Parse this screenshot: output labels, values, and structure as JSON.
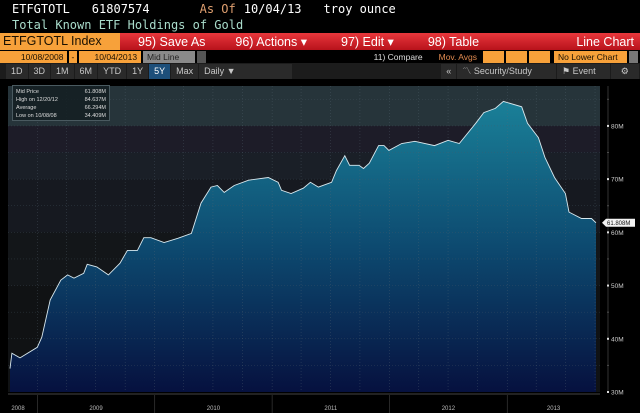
{
  "header": {
    "ticker": "ETFGTOTL",
    "value": "61807574",
    "as_of_label": "As Of",
    "as_of_date": "10/04/13",
    "unit": "troy ounce",
    "description": "Total Known ETF Holdings of Gold"
  },
  "toolbar": {
    "security": "ETFGTOTL Index",
    "save_as": "95) Save As",
    "actions": "96) Actions ▾",
    "edit": "97) Edit ▾",
    "table": "98) Table",
    "chart_type": "Line Chart"
  },
  "controls": {
    "start_date": "10/08/2008",
    "dash": "-",
    "end_date": "10/04/2013",
    "line_mode": "Mid Line",
    "compare": "11) Compare",
    "mov_avgs": "Mov. Avgs",
    "lower_chart": "No Lower Chart"
  },
  "periods": [
    "1D",
    "3D",
    "1M",
    "6M",
    "YTD",
    "1Y",
    "5Y",
    "Max"
  ],
  "selected_period": "5Y",
  "frequency": "Daily ▼",
  "collapse": "«",
  "security_study": "Security/Study",
  "event": "Event",
  "icons": {
    "settings": "gear-icon",
    "study": "line-chart-icon",
    "event": "flag-icon"
  },
  "colors": {
    "accent_orange": "#f7a13a",
    "toolbar_red": "#d0202a",
    "fill_top": "#1a8098",
    "fill_bottom": "#06113f",
    "line": "#d8e8ee"
  },
  "legend": [
    {
      "label": "Mid Price",
      "value": "61.808M"
    },
    {
      "label": "High on 12/20/12",
      "value": "84.637M"
    },
    {
      "label": "Average",
      "value": "66.294M"
    },
    {
      "label": "Low on 10/08/08",
      "value": "34.409M"
    }
  ],
  "chart_data": {
    "type": "area",
    "title": "",
    "xlabel": "",
    "ylabel": "",
    "ylim": [
      30,
      87.5
    ],
    "xlim": [
      "2008-10-08",
      "2013-10-04"
    ],
    "yticks": [
      "30M",
      "40M",
      "50M",
      "60M",
      "70M",
      "80M"
    ],
    "ytick_values": [
      30,
      40,
      50,
      60,
      70,
      80
    ],
    "xticks": [
      "2008",
      "2009",
      "2010",
      "2011",
      "2012",
      "2013"
    ],
    "last_value_label": "61.808M",
    "grid": true,
    "series": [
      {
        "x": [
          "2008-10-08",
          "2008-10-14",
          "2008-11-08",
          "2009-01-01",
          "2009-01-15",
          "2009-02-10",
          "2009-03-15",
          "2009-04-05",
          "2009-04-25",
          "2009-05-25",
          "2009-06-05",
          "2009-07-05",
          "2009-08-10",
          "2009-09-15",
          "2009-10-08",
          "2009-11-08",
          "2009-11-28",
          "2009-12-20",
          "2010-01-30",
          "2010-03-15",
          "2010-04-25",
          "2010-05-25",
          "2010-06-25",
          "2010-07-15",
          "2010-08-05",
          "2010-09-05",
          "2010-10-20",
          "2010-12-20",
          "2011-01-20",
          "2011-01-30",
          "2011-03-01",
          "2011-04-08",
          "2011-04-30",
          "2011-05-25",
          "2011-07-05",
          "2011-07-20",
          "2011-08-15",
          "2011-08-30",
          "2011-09-28",
          "2011-10-12",
          "2011-10-30",
          "2011-11-28",
          "2011-12-15",
          "2011-12-30",
          "2012-02-08",
          "2012-03-20",
          "2012-05-20",
          "2012-07-01",
          "2012-08-05",
          "2012-09-25",
          "2012-10-20",
          "2012-11-25",
          "2012-12-20",
          "2013-02-15",
          "2013-03-05",
          "2013-04-08",
          "2013-04-28",
          "2013-05-28",
          "2013-07-01",
          "2013-07-12",
          "2013-08-20",
          "2013-09-20",
          "2013-10-04"
        ],
        "values": [
          34.4,
          37.3,
          36.4,
          38.4,
          40.3,
          47.3,
          51,
          52,
          51.4,
          52.3,
          54,
          53.5,
          52,
          54.2,
          56.6,
          56.6,
          59,
          59,
          58.1,
          58.9,
          59.8,
          65.5,
          68.5,
          68.8,
          67.5,
          68.8,
          69.8,
          70.3,
          69.4,
          67.9,
          67.3,
          68.3,
          69.4,
          68.5,
          69.4,
          71.6,
          74.4,
          72.6,
          72.6,
          72,
          73,
          76.3,
          76.3,
          75.4,
          76.7,
          77.1,
          76.3,
          77.3,
          76.7,
          80.5,
          82.5,
          83.3,
          84.6,
          83.6,
          80.5,
          77.8,
          74.1,
          70.3,
          67.3,
          63.8,
          62.6,
          62.6,
          61.8
        ]
      }
    ]
  }
}
